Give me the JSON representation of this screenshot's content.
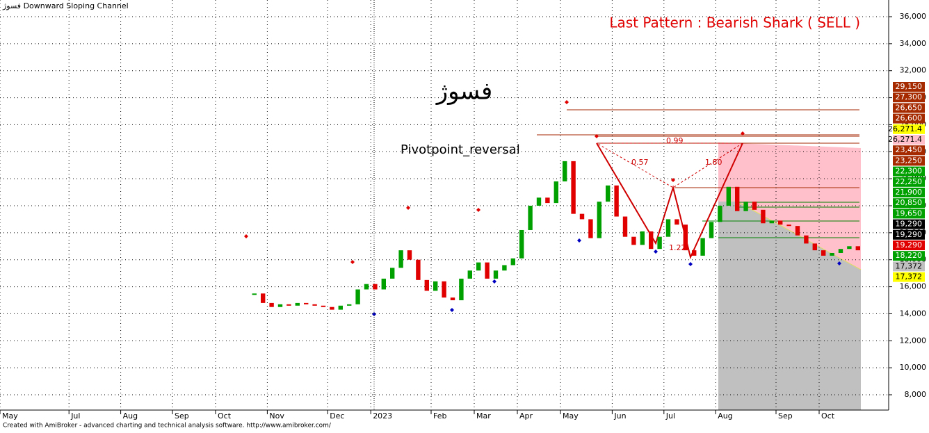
{
  "chart_data": {
    "type": "bar",
    "title": "فسوژ Downward Sloping Channel",
    "pattern_label": "Last Pattern : Bearish Shark ( SELL )",
    "symbol": "فسوژ",
    "indicator_label": "Pivotpoint_reversal",
    "ratio_labels": [
      "0.99",
      "0.57",
      "1.80",
      "1.22"
    ],
    "footer": "Created with AmiBroker - advanced charting and technical analysis software. http://www.amibroker.com/",
    "categories": [
      "May",
      null,
      null,
      null,
      null,
      null,
      null,
      null,
      "Jul",
      null,
      null,
      null,
      null,
      null,
      "Aug",
      null,
      null,
      null,
      null,
      null,
      "Sep",
      null,
      null,
      null,
      null,
      "Oct",
      null,
      null,
      null,
      null,
      null,
      "Nov",
      null,
      null,
      null,
      null,
      null,
      null,
      "Dec",
      null,
      null,
      null,
      null,
      "2023",
      null,
      null,
      null,
      null,
      null,
      null,
      "Feb",
      null,
      null,
      null,
      null,
      "Mar",
      null,
      null,
      null,
      null,
      "Apr",
      null,
      null,
      null,
      null,
      "May",
      null,
      null,
      null,
      null,
      null,
      "Jun",
      null,
      null,
      null,
      null,
      null,
      "Jul",
      null,
      null,
      null,
      null,
      null,
      "Aug",
      null,
      null,
      null,
      null,
      null,
      null,
      "Sep",
      null,
      null,
      null,
      null,
      "Oct",
      null,
      null,
      null,
      null
    ],
    "values": [
      null,
      null,
      null,
      null,
      null,
      null,
      null,
      null,
      null,
      null,
      null,
      null,
      null,
      null,
      null,
      null,
      null,
      null,
      null,
      null,
      null,
      null,
      null,
      null,
      null,
      null,
      null,
      null,
      null,
      15500,
      14800,
      14500,
      14700,
      14600,
      14800,
      14700,
      14600,
      14500,
      14300,
      14600,
      14700,
      15800,
      16200,
      15800,
      16600,
      17400,
      18700,
      18000,
      16500,
      15700,
      16400,
      15200,
      15000,
      16600,
      17200,
      17800,
      16600,
      17200,
      17600,
      18100,
      20200,
      22000,
      22600,
      22200,
      23800,
      25300,
      21400,
      21000,
      19600,
      22300,
      23500,
      21200,
      19700,
      19100,
      20100,
      18800,
      19700,
      21000,
      20600,
      18700,
      18300,
      19600,
      20800,
      22000,
      23400,
      21600,
      22300,
      21700,
      20700,
      20900,
      20600,
      20500,
      19800,
      19200,
      18700,
      18300,
      18500,
      18800,
      19000,
      18700
    ],
    "color_up": "#00a000",
    "color_down": "#e00000",
    "ylim": [
      7000,
      37000
    ],
    "yticks": [
      {
        "value": 8000,
        "label": "8,000"
      },
      {
        "value": 10000,
        "label": "10,000"
      },
      {
        "value": 12000,
        "label": "12,000"
      },
      {
        "value": 14000,
        "label": "14,000"
      },
      {
        "value": 16000,
        "label": "16,000"
      },
      {
        "value": 18000,
        "label": "18,000"
      },
      {
        "value": 20000,
        "label": "20,000"
      },
      {
        "value": 22000,
        "label": "22,000"
      },
      {
        "value": 24000,
        "label": "24,000"
      },
      {
        "value": 26000,
        "label": "26,000"
      },
      {
        "value": 28000,
        "label": "28,000"
      },
      {
        "value": 30000,
        "label": "30,000"
      },
      {
        "value": 32000,
        "label": "32,000"
      },
      {
        "value": 34000,
        "label": "34,000"
      },
      {
        "value": 36000,
        "label": "36,000"
      }
    ],
    "price_labels": [
      {
        "label": "29,150",
        "color": "#a52a00"
      },
      {
        "label": "27,300",
        "color": "#a52a00"
      },
      {
        "label": "26,650",
        "color": "#a52a00"
      },
      {
        "label": "26,600",
        "color": "#a52a00"
      },
      {
        "label": "26,271.4",
        "color": "#ffff00"
      },
      {
        "label": "26,271.4",
        "color": "#ffc0cb"
      },
      {
        "label": "23,450",
        "color": "#a52a00"
      },
      {
        "label": "23,250",
        "color": "#a52a00"
      },
      {
        "label": "22,300",
        "color": "#00a000"
      },
      {
        "label": "22,250",
        "color": "#00a000"
      },
      {
        "label": "21,900",
        "color": "#00a000"
      },
      {
        "label": "20,850",
        "color": "#00a000"
      },
      {
        "label": "19,650",
        "color": "#00a000"
      },
      {
        "label": "19,290",
        "color": "#000000"
      },
      {
        "label": "19,290",
        "color": "#000000"
      },
      {
        "label": "19,290",
        "color": "#e00000"
      },
      {
        "label": "18,220",
        "color": "#00a000"
      },
      {
        "label": "17,372",
        "color": "#c0c0c0"
      },
      {
        "label": "17,372",
        "color": "#ffff00"
      }
    ],
    "grid": true
  }
}
